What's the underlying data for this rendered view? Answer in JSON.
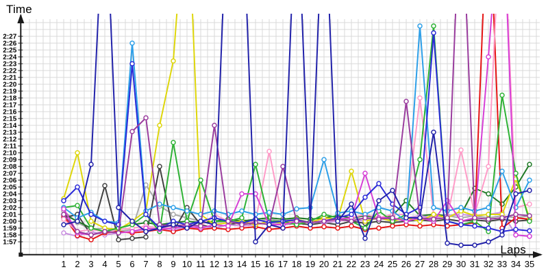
{
  "page": {
    "y_axis_title": "Time",
    "x_axis_title": "Laps",
    "background": "#ffffff",
    "grid_color": "#d9d9d9",
    "axis_color": "#1a1a1a",
    "marker_fill": "#ffffff"
  },
  "chart_data": {
    "type": "line",
    "title": "",
    "xlabel": "Laps",
    "ylabel": "Time",
    "x": [
      1,
      2,
      3,
      4,
      5,
      6,
      7,
      8,
      9,
      10,
      11,
      12,
      13,
      14,
      15,
      16,
      17,
      18,
      19,
      20,
      21,
      22,
      23,
      24,
      25,
      26,
      27,
      28,
      29,
      30,
      31,
      32,
      33,
      34,
      35
    ],
    "y_tick_labels": [
      "1:57",
      "1:58",
      "1:59",
      "2:00",
      "2:01",
      "2:02",
      "2:03",
      "2:04",
      "2:05",
      "2:06",
      "2:07",
      "2:08",
      "2:09",
      "2:10",
      "2:11",
      "2:12",
      "2:13",
      "2:14",
      "2:15",
      "2:16",
      "2:17",
      "2:18",
      "2:19",
      "2:20",
      "2:21",
      "2:22",
      "2:23",
      "2:24",
      "2:25",
      "2:26",
      "2:27"
    ],
    "y_min_seconds": 117,
    "y_max_seconds": 147,
    "off_scale_seconds": 170,
    "grid": true,
    "legend": "none",
    "series": [
      {
        "name": "gray",
        "color": "#a8a8a8",
        "values": [
          121.5,
          119.8,
          118.8,
          119,
          118.5,
          118.8,
          125.3,
          122.2,
          121,
          120.5,
          120,
          119.8,
          120,
          120.2,
          120,
          120.3,
          120,
          120.5,
          120.3,
          120.5,
          120.3,
          120.5,
          120.3,
          120.5,
          120.3,
          120.5,
          120.8,
          120.5,
          120.8,
          120.5,
          120.8,
          120.5,
          120.8,
          120.5,
          120.8
        ]
      },
      {
        "name": "black",
        "color": "#414141",
        "values": [
          120.5,
          121,
          118,
          125.2,
          117.3,
          117.5,
          117.7,
          128,
          118.5,
          122,
          119.5,
          119,
          119.5,
          119.8,
          119.5,
          119.8,
          119.5,
          119.7,
          119.5,
          119.8,
          119.5,
          120,
          119.7,
          120,
          119.8,
          120,
          120.2,
          120,
          120.3,
          120,
          120.2,
          120,
          120.3,
          120,
          120.2
        ]
      },
      {
        "name": "darkgreen",
        "color": "#1e7a24",
        "values": [
          121,
          120,
          119,
          118.5,
          119,
          119.5,
          119.8,
          119.5,
          119.8,
          120,
          119.8,
          120,
          120.3,
          120,
          120.3,
          120.5,
          120.3,
          120.5,
          120.3,
          120.5,
          120.8,
          120.5,
          120.8,
          120.5,
          120.8,
          123,
          120.8,
          121,
          120.8,
          121,
          124.8,
          124,
          122.5,
          125,
          128.3
        ]
      },
      {
        "name": "plum",
        "color": "#c98fe0",
        "values": [
          118.3,
          117.8,
          118.5,
          118,
          118.3,
          118.5,
          118.8,
          119,
          118.8,
          119,
          119.3,
          119,
          119.5,
          119.3,
          119.5,
          119.8,
          119.5,
          119.8,
          120,
          119.8,
          120,
          120.3,
          120,
          120.5,
          120.3,
          120.5,
          120.8,
          120.5,
          120.8,
          121,
          120.8,
          121,
          121.3,
          118,
          117.8
        ]
      },
      {
        "name": "red",
        "color": "#e51414",
        "values": [
          120.8,
          117.9,
          117.3,
          118.3,
          118.5,
          118.3,
          118.5,
          118.8,
          118.5,
          119,
          118.8,
          119,
          118.8,
          119,
          119.2,
          118.8,
          119,
          119.3,
          119,
          119.2,
          119,
          119.3,
          118.8,
          119,
          119.3,
          119.5,
          119.3,
          119.5,
          119.3,
          119.5,
          119.8,
          170,
          119,
          120.5,
          120.3
        ]
      },
      {
        "name": "pink",
        "color": "#ff9cc8",
        "values": [
          120.3,
          118.5,
          118.8,
          118.5,
          118.8,
          119,
          119.3,
          119,
          119.3,
          119.5,
          119.3,
          121,
          120,
          119.5,
          120,
          130.2,
          120,
          119.5,
          120,
          120.3,
          120,
          120.5,
          121,
          120.5,
          121,
          121,
          138,
          121,
          120.5,
          130.4,
          121,
          128,
          170,
          122,
          122.5
        ]
      },
      {
        "name": "yellow",
        "color": "#ded60a",
        "values": [
          123.3,
          130,
          120,
          119,
          118.8,
          120,
          121.5,
          134,
          143.4,
          170,
          121,
          119.5,
          119.8,
          120,
          119.5,
          120,
          119.7,
          120.3,
          119.8,
          120.5,
          120.3,
          127.3,
          120,
          120.5,
          120,
          120.5,
          120,
          121,
          120.5,
          121.5,
          120.8,
          121,
          121,
          126.2,
          120.5
        ]
      },
      {
        "name": "green",
        "color": "#2eb235",
        "values": [
          122,
          122.3,
          119,
          118.5,
          119,
          119.5,
          121,
          118.5,
          131.5,
          120,
          126,
          120,
          120,
          120.5,
          128.3,
          120,
          120,
          119.5,
          120,
          121,
          120.5,
          120,
          119,
          121.5,
          120,
          121,
          129,
          148.5,
          120,
          119.5,
          120,
          118.5,
          138.4,
          127,
          120
        ]
      },
      {
        "name": "skyblue",
        "color": "#2d9fe8",
        "values": [
          122,
          120.5,
          121.3,
          120,
          119.8,
          146,
          121.5,
          122.5,
          122,
          121.5,
          121,
          121.5,
          121,
          121.5,
          121,
          121.3,
          121,
          121.8,
          122,
          129,
          121.2,
          121.5,
          121,
          122,
          121.5,
          120,
          148.5,
          122,
          121.5,
          122,
          121.5,
          122,
          127.3,
          122,
          126
        ]
      },
      {
        "name": "violet",
        "color": "#d63fd6",
        "values": [
          121.8,
          118.3,
          118,
          118.5,
          118.3,
          118.5,
          119,
          118.8,
          119,
          119.3,
          119,
          119.5,
          119.3,
          124,
          124,
          119.5,
          119.5,
          120,
          119.8,
          120,
          120.3,
          120.5,
          127,
          120.5,
          120.5,
          120,
          120.5,
          120,
          123,
          120,
          120.5,
          144,
          170,
          118,
          117.8
        ]
      },
      {
        "name": "blue",
        "color": "#2a2ad8",
        "values": [
          123,
          125,
          121,
          120,
          119.5,
          143,
          121,
          119,
          120,
          119.5,
          120,
          120.5,
          120,
          119.7,
          120.3,
          119.8,
          120,
          120.2,
          119.8,
          120,
          120.5,
          121,
          123.5,
          125.5,
          122.5,
          121,
          122,
          147.5,
          120,
          119.5,
          119.3,
          119,
          118.5,
          118.8,
          118.6
        ]
      },
      {
        "name": "purple",
        "color": "#9a3d9e",
        "values": [
          121,
          118.5,
          118,
          118.5,
          118.3,
          133.1,
          135.1,
          119.5,
          119.3,
          119.5,
          119.3,
          134,
          120,
          119.5,
          119.8,
          119.5,
          128,
          120,
          119.8,
          120,
          120.3,
          120,
          120.5,
          120.3,
          120.5,
          137.5,
          120.5,
          120.3,
          120.5,
          170,
          120.5,
          120.3,
          120.5,
          121,
          120.8
        ]
      },
      {
        "name": "navy",
        "color": "#2222aa",
        "values": [
          119.5,
          120,
          128.3,
          170,
          122,
          120,
          118.5,
          119,
          119.5,
          119,
          120,
          119.5,
          170,
          170,
          117,
          119.5,
          119,
          170,
          119.5,
          170,
          120,
          122.5,
          117.5,
          123,
          124.5,
          120.5,
          120.5,
          133,
          116.8,
          116.5,
          116.5,
          117,
          118,
          124,
          124.5
        ]
      }
    ]
  }
}
